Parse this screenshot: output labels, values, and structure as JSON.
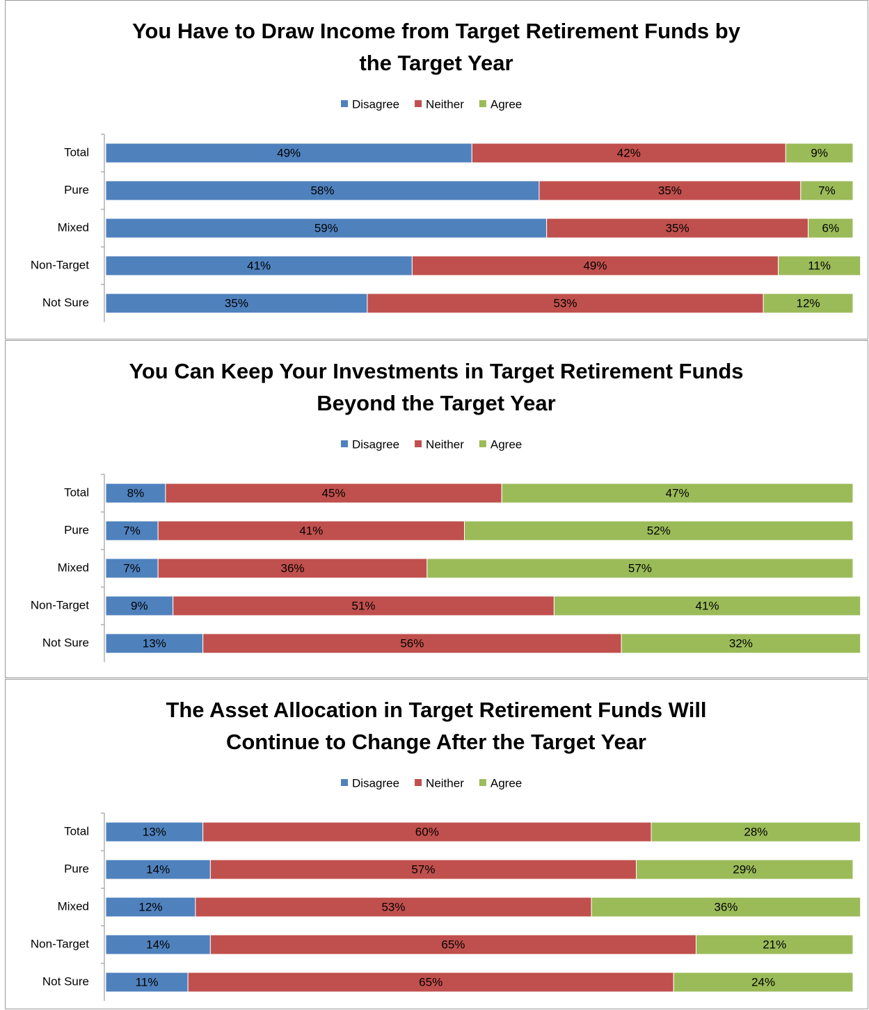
{
  "chart_data": [
    {
      "type": "bar",
      "orientation": "horizontal",
      "stacked": true,
      "legend": "top",
      "title": [
        "You Have to Draw Income from Target Retirement Funds by",
        "the Target Year"
      ],
      "categories": [
        "Total",
        "Pure",
        "Mixed",
        "Non-Target",
        "Not Sure"
      ],
      "xlim": [
        0,
        100
      ],
      "series": [
        {
          "name": "Disagree",
          "color": "#4f81bd",
          "values": [
            49,
            58,
            59,
            41,
            35
          ],
          "value_labels": [
            "49%",
            "58%",
            "59%",
            "41%",
            "35%"
          ]
        },
        {
          "name": "Neither",
          "color": "#c0504d",
          "values": [
            42,
            35,
            35,
            49,
            53
          ],
          "value_labels": [
            "42%",
            "35%",
            "35%",
            "49%",
            "53%"
          ]
        },
        {
          "name": "Agree",
          "color": "#9bbb59",
          "values": [
            9,
            7,
            6,
            11,
            12
          ],
          "value_labels": [
            "9%",
            "7%",
            "6%",
            "11%",
            "12%"
          ]
        }
      ]
    },
    {
      "type": "bar",
      "orientation": "horizontal",
      "stacked": true,
      "legend": "top",
      "title": [
        "You Can Keep Your Investments in Target Retirement Funds",
        "Beyond the Target Year"
      ],
      "categories": [
        "Total",
        "Pure",
        "Mixed",
        "Non-Target",
        "Not Sure"
      ],
      "xlim": [
        0,
        100
      ],
      "series": [
        {
          "name": "Disagree",
          "color": "#4f81bd",
          "values": [
            8,
            7,
            7,
            9,
            13
          ],
          "value_labels": [
            "8%",
            "7%",
            "7%",
            "9%",
            "13%"
          ]
        },
        {
          "name": "Neither",
          "color": "#c0504d",
          "values": [
            45,
            41,
            36,
            51,
            56
          ],
          "value_labels": [
            "45%",
            "41%",
            "36%",
            "51%",
            "56%"
          ]
        },
        {
          "name": "Agree",
          "color": "#9bbb59",
          "values": [
            47,
            52,
            57,
            41,
            32
          ],
          "value_labels": [
            "47%",
            "52%",
            "57%",
            "41%",
            "32%"
          ]
        }
      ]
    },
    {
      "type": "bar",
      "orientation": "horizontal",
      "stacked": true,
      "legend": "top",
      "title": [
        "The Asset Allocation in Target Retirement Funds Will",
        "Continue to Change After the Target Year"
      ],
      "categories": [
        "Total",
        "Pure",
        "Mixed",
        "Non-Target",
        "Not Sure"
      ],
      "xlim": [
        0,
        100
      ],
      "series": [
        {
          "name": "Disagree",
          "color": "#4f81bd",
          "values": [
            13,
            14,
            12,
            14,
            11
          ],
          "value_labels": [
            "13%",
            "14%",
            "12%",
            "14%",
            "11%"
          ]
        },
        {
          "name": "Neither",
          "color": "#c0504d",
          "values": [
            60,
            57,
            53,
            65,
            65
          ],
          "value_labels": [
            "60%",
            "57%",
            "53%",
            "65%",
            "65%"
          ]
        },
        {
          "name": "Agree",
          "color": "#9bbb59",
          "values": [
            28,
            29,
            36,
            21,
            24
          ],
          "value_labels": [
            "28%",
            "29%",
            "36%",
            "21%",
            "24%"
          ]
        }
      ]
    }
  ]
}
